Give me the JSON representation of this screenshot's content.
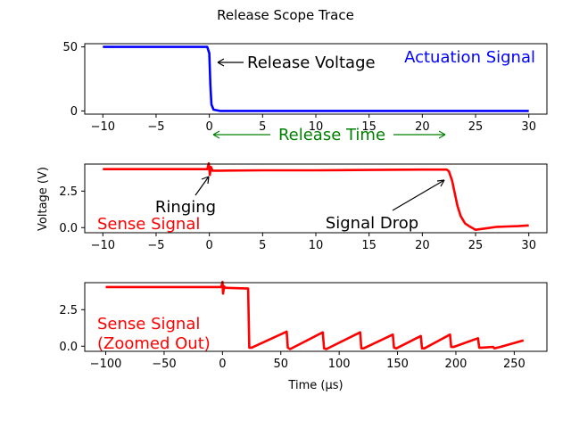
{
  "figure": {
    "title": "Release Scope Trace"
  },
  "colors": {
    "actuation": "#0000ff",
    "sense": "#ff0000",
    "release_time": "#008000",
    "annotation": "#000000"
  },
  "chart_data": [
    {
      "type": "line",
      "name": "actuation-panel",
      "xlim": [
        -11.7,
        31.7
      ],
      "ylim": [
        -2.5,
        52.5
      ],
      "xticks": [
        -10,
        -5,
        0,
        5,
        10,
        15,
        20,
        25,
        30
      ],
      "xtick_labels": [
        "−10",
        "−5",
        "0",
        "5",
        "10",
        "15",
        "20",
        "25",
        "30"
      ],
      "yticks": [
        0,
        50
      ],
      "ytick_labels": [
        "0",
        "50"
      ],
      "xlabel": "",
      "ylabel": "",
      "series": [
        {
          "color": "#0000ff",
          "x": [
            -10,
            -0.2,
            0.0,
            0.1,
            0.2,
            0.4,
            1,
            30
          ],
          "y": [
            50,
            50,
            45,
            20,
            5,
            1,
            0,
            0
          ]
        }
      ],
      "annotations": [
        {
          "text": "Actuation Signal",
          "color": "#0000ff"
        },
        {
          "text": "Release Voltage",
          "color": "#000000",
          "arrow_to": [
            0.1,
            39
          ]
        },
        {
          "text": "Release Time",
          "color": "#008000",
          "span": [
            0,
            22.5
          ]
        }
      ]
    },
    {
      "type": "line",
      "name": "sense-panel",
      "xlim": [
        -11.7,
        31.7
      ],
      "ylim": [
        -0.35,
        4.35
      ],
      "xticks": [
        -10,
        -5,
        0,
        5,
        10,
        15,
        20,
        25,
        30
      ],
      "xtick_labels": [
        "−10",
        "−5",
        "0",
        "5",
        "10",
        "15",
        "20",
        "25",
        "30"
      ],
      "yticks": [
        0,
        2.5
      ],
      "ytick_labels": [
        "0.0",
        "2.5"
      ],
      "xlabel": "",
      "ylabel": "Voltage (V)",
      "series": [
        {
          "color": "#ff0000",
          "x": [
            -10,
            -5,
            -0.2,
            -0.05,
            0.05,
            0.15,
            0.3,
            1,
            5,
            10,
            15,
            20,
            22.3,
            22.5,
            22.8,
            23,
            23.3,
            23.6,
            24,
            24.5,
            25,
            26,
            27,
            28,
            29,
            30
          ],
          "y": [
            4.0,
            4.0,
            4.0,
            4.4,
            3.6,
            4.15,
            3.9,
            3.9,
            3.92,
            3.92,
            3.95,
            3.97,
            3.97,
            3.85,
            3.2,
            2.5,
            1.5,
            0.8,
            0.3,
            0.05,
            -0.15,
            -0.05,
            0.05,
            0.08,
            0.1,
            0.15
          ]
        }
      ],
      "annotations": [
        {
          "text": "Sense Signal",
          "color": "#ff0000"
        },
        {
          "text": "Ringing",
          "color": "#000000",
          "arrow_to": [
            0,
            3.8
          ]
        },
        {
          "text": "Signal Drop",
          "color": "#000000",
          "arrow_to": [
            22.5,
            3.45
          ]
        }
      ]
    },
    {
      "type": "line",
      "name": "sense-zoomed-panel",
      "xlim": [
        -118,
        278
      ],
      "ylim": [
        -0.35,
        4.35
      ],
      "xticks": [
        -100,
        -50,
        0,
        50,
        100,
        150,
        200,
        250
      ],
      "xtick_labels": [
        "−100",
        "−50",
        "0",
        "50",
        "100",
        "150",
        "200",
        "250"
      ],
      "yticks": [
        0,
        2.5
      ],
      "ytick_labels": [
        "0.0",
        "2.5"
      ],
      "xlabel": "Time (μs)",
      "ylabel": "",
      "series": [
        {
          "color": "#ff0000",
          "x": [
            -100,
            -1,
            0,
            0.5,
            1.5,
            2,
            22,
            23,
            25,
            55,
            56,
            58,
            86,
            87,
            89,
            118,
            119,
            121,
            146,
            147,
            149,
            170,
            171,
            173,
            195,
            196,
            198,
            219,
            220,
            222,
            232,
            233,
            238,
            258
          ],
          "y": [
            4.05,
            4.05,
            4.4,
            3.6,
            4.1,
            4.0,
            3.95,
            -0.1,
            -0.1,
            1.0,
            -0.1,
            -0.2,
            0.95,
            -0.15,
            -0.2,
            0.95,
            -0.15,
            -0.15,
            0.8,
            -0.1,
            -0.15,
            0.7,
            -0.15,
            -0.15,
            0.8,
            -0.05,
            -0.05,
            0.55,
            -0.1,
            -0.1,
            -0.05,
            -0.15,
            -0.05,
            0.4
          ]
        }
      ],
      "annotations": [
        {
          "text": "Sense Signal\n(Zoomed Out)",
          "color": "#ff0000"
        }
      ]
    }
  ]
}
